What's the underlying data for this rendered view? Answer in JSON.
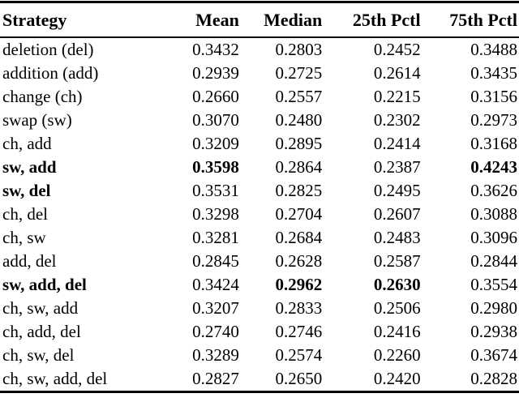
{
  "table": {
    "columns": [
      "Strategy",
      "Mean",
      "Median",
      "25th Pctl",
      "75th Pctl"
    ],
    "rows": [
      {
        "label": "deletion (del)",
        "label_bold": 0,
        "cells": [
          "0.3432",
          "0.2803",
          "0.2452",
          "0.3488"
        ],
        "bold": [
          0,
          0,
          0,
          0
        ]
      },
      {
        "label": "addition (add)",
        "label_bold": 0,
        "cells": [
          "0.2939",
          "0.2725",
          "0.2614",
          "0.3435"
        ],
        "bold": [
          0,
          0,
          0,
          0
        ]
      },
      {
        "label": "change (ch)",
        "label_bold": 0,
        "cells": [
          "0.2660",
          "0.2557",
          "0.2215",
          "0.3156"
        ],
        "bold": [
          0,
          0,
          0,
          0
        ]
      },
      {
        "label": "swap (sw)",
        "label_bold": 0,
        "cells": [
          "0.3070",
          "0.2480",
          "0.2302",
          "0.2973"
        ],
        "bold": [
          0,
          0,
          0,
          0
        ]
      },
      {
        "label": "ch, add",
        "label_bold": 0,
        "cells": [
          "0.3209",
          "0.2895",
          "0.2414",
          "0.3168"
        ],
        "bold": [
          0,
          0,
          0,
          0
        ]
      },
      {
        "label": "sw, add",
        "label_bold": 1,
        "cells": [
          "0.3598",
          "0.2864",
          "0.2387",
          "0.4243"
        ],
        "bold": [
          1,
          0,
          0,
          1
        ]
      },
      {
        "label": "sw, del",
        "label_bold": 1,
        "cells": [
          "0.3531",
          "0.2825",
          "0.2495",
          "0.3626"
        ],
        "bold": [
          0,
          0,
          0,
          0
        ]
      },
      {
        "label": "ch, del",
        "label_bold": 0,
        "cells": [
          "0.3298",
          "0.2704",
          "0.2607",
          "0.3088"
        ],
        "bold": [
          0,
          0,
          0,
          0
        ]
      },
      {
        "label": "ch, sw",
        "label_bold": 0,
        "cells": [
          "0.3281",
          "0.2684",
          "0.2483",
          "0.3096"
        ],
        "bold": [
          0,
          0,
          0,
          0
        ]
      },
      {
        "label": "add, del",
        "label_bold": 0,
        "cells": [
          "0.2845",
          "0.2628",
          "0.2587",
          "0.2844"
        ],
        "bold": [
          0,
          0,
          0,
          0
        ]
      },
      {
        "label": "sw, add, del",
        "label_bold": 1,
        "cells": [
          "0.3424",
          "0.2962",
          "0.2630",
          "0.3554"
        ],
        "bold": [
          0,
          1,
          1,
          0
        ]
      },
      {
        "label": "ch, sw, add",
        "label_bold": 0,
        "cells": [
          "0.3207",
          "0.2833",
          "0.2506",
          "0.2980"
        ],
        "bold": [
          0,
          0,
          0,
          0
        ]
      },
      {
        "label": "ch, add, del",
        "label_bold": 0,
        "cells": [
          "0.2740",
          "0.2746",
          "0.2416",
          "0.2938"
        ],
        "bold": [
          0,
          0,
          0,
          0
        ]
      },
      {
        "label": "ch, sw, del",
        "label_bold": 0,
        "cells": [
          "0.3289",
          "0.2574",
          "0.2260",
          "0.3674"
        ],
        "bold": [
          0,
          0,
          0,
          0
        ]
      },
      {
        "label": "ch, sw, add, del",
        "label_bold": 0,
        "cells": [
          "0.2827",
          "0.2650",
          "0.2420",
          "0.2828"
        ],
        "bold": [
          0,
          0,
          0,
          0
        ]
      }
    ]
  }
}
